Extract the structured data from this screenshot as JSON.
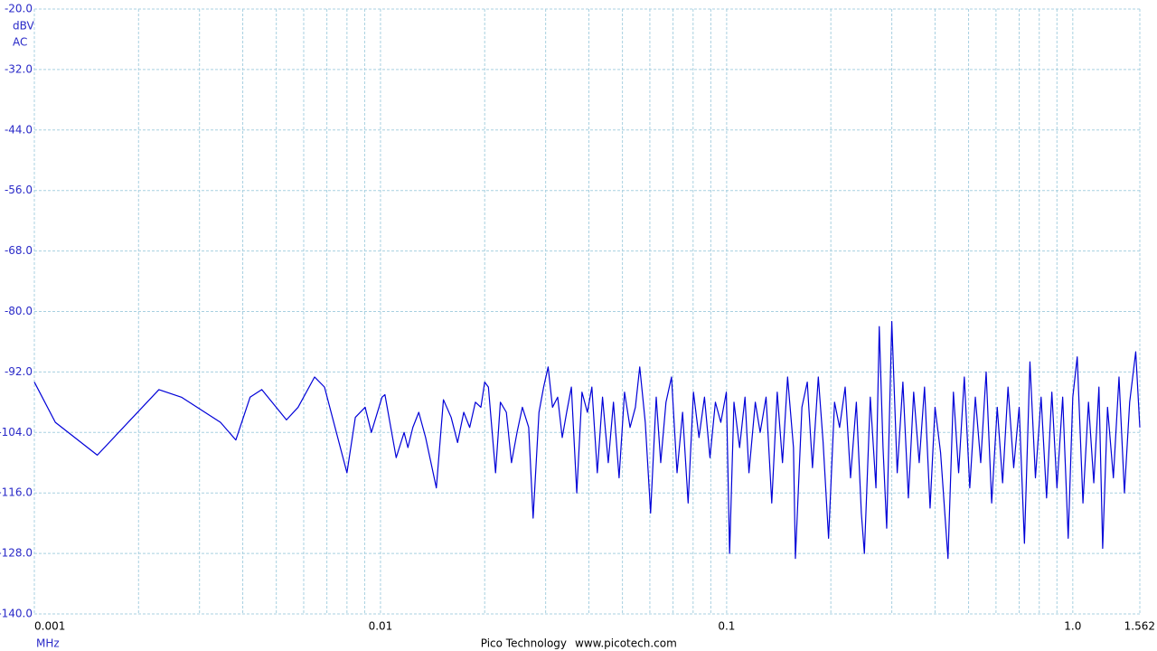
{
  "chart_data": {
    "type": "line",
    "log_x": true,
    "grid": true,
    "y_unit": "dBV",
    "coupling": "AC",
    "x_unit": "MHz",
    "footer": [
      "Pico Technology",
      "www.picotech.com"
    ],
    "xlim": [
      0.001,
      1.562
    ],
    "xticks": [
      0.001,
      0.01,
      0.1,
      {
        "value": 1,
        "label": "1.0"
      },
      1.562
    ],
    "x_minor_ticks": [
      0.002,
      0.003,
      0.004,
      0.005,
      0.006,
      0.007,
      0.008,
      0.009,
      0.02,
      0.03,
      0.04,
      0.05,
      0.06,
      0.07,
      0.08,
      0.09,
      0.2,
      0.3,
      0.4,
      0.5,
      0.6,
      0.7,
      0.8,
      0.9
    ],
    "ylim": [
      -140,
      -20
    ],
    "yticks": [
      {
        "value": -20,
        "label": "-20.0"
      },
      {
        "value": -32,
        "label": "-32.0"
      },
      {
        "value": -44,
        "label": "-44.0"
      },
      {
        "value": -56,
        "label": "-56.0"
      },
      {
        "value": -68,
        "label": "-68.0"
      },
      {
        "value": -80,
        "label": "-80.0"
      },
      {
        "value": -92,
        "label": "-92.0"
      },
      {
        "value": -104,
        "label": "-104.0"
      },
      {
        "value": -116,
        "label": "-116.0"
      },
      {
        "value": -128,
        "label": "-128.0"
      },
      {
        "value": -140,
        "label": "-140.0"
      }
    ],
    "x": [
      0.001,
      0.00115,
      0.00152,
      0.00229,
      0.00266,
      0.00345,
      0.00382,
      0.0042,
      0.00454,
      0.00535,
      0.00578,
      0.00645,
      0.00689,
      0.008,
      0.00846,
      0.00903,
      0.00941,
      0.0101,
      0.0103,
      0.0111,
      0.0117,
      0.012,
      0.0124,
      0.0129,
      0.0135,
      0.0145,
      0.0152,
      0.016,
      0.0167,
      0.0174,
      0.0181,
      0.0188,
      0.0195,
      0.02,
      0.0205,
      0.0215,
      0.0222,
      0.0231,
      0.0239,
      0.0248,
      0.0257,
      0.0268,
      0.0276,
      0.0287,
      0.0296,
      0.0305,
      0.0314,
      0.0325,
      0.0335,
      0.0345,
      0.0356,
      0.0369,
      0.0382,
      0.0396,
      0.0408,
      0.0423,
      0.0438,
      0.0455,
      0.0471,
      0.0489,
      0.0507,
      0.0526,
      0.0545,
      0.0561,
      0.0582,
      0.0603,
      0.0626,
      0.0645,
      0.0668,
      0.0693,
      0.0719,
      0.0746,
      0.0774,
      0.0802,
      0.0832,
      0.0863,
      0.0895,
      0.0928,
      0.0962,
      0.0998,
      0.102,
      0.105,
      0.109,
      0.113,
      0.116,
      0.121,
      0.125,
      0.13,
      0.135,
      0.14,
      0.145,
      0.15,
      0.156,
      0.158,
      0.165,
      0.171,
      0.177,
      0.184,
      0.19,
      0.197,
      0.205,
      0.212,
      0.22,
      0.228,
      0.237,
      0.245,
      0.25,
      0.26,
      0.27,
      0.276,
      0.283,
      0.29,
      0.3,
      0.311,
      0.323,
      0.335,
      0.347,
      0.36,
      0.373,
      0.387,
      0.4,
      0.415,
      0.436,
      0.452,
      0.468,
      0.486,
      0.504,
      0.523,
      0.542,
      0.562,
      0.583,
      0.605,
      0.627,
      0.65,
      0.675,
      0.7,
      0.725,
      0.752,
      0.78,
      0.81,
      0.84,
      0.87,
      0.9,
      0.935,
      0.97,
      1.0,
      1.03,
      1.07,
      1.11,
      1.15,
      1.19,
      1.22,
      1.26,
      1.31,
      1.36,
      1.41,
      1.46,
      1.52,
      1.562
    ],
    "series": [
      {
        "color": "#0000d8",
        "values": [
          -94,
          -102,
          -108.5,
          -95.5,
          -97,
          -102,
          -105.5,
          -97,
          -95.5,
          -101.5,
          -99,
          -93,
          -95,
          -112,
          -101,
          -99,
          -104,
          -97,
          -96.5,
          -109,
          -104,
          -107,
          -103,
          -100,
          -105,
          -115,
          -97.5,
          -101,
          -106,
          -100,
          -103,
          -98,
          -99,
          -94,
          -95,
          -112,
          -98,
          -100,
          -110,
          -104,
          -99,
          -103,
          -121,
          -100,
          -95,
          -91,
          -99,
          -97,
          -105,
          -100,
          -95,
          -116,
          -96,
          -100,
          -95,
          -112,
          -97,
          -110,
          -98,
          -113,
          -96,
          -103,
          -99,
          -91,
          -102,
          -120,
          -97,
          -110,
          -98,
          -93,
          -112,
          -100,
          -118,
          -96,
          -105,
          -97,
          -109,
          -98,
          -102,
          -96,
          -128,
          -98,
          -107,
          -97,
          -112,
          -98,
          -104,
          -97,
          -118,
          -96,
          -110,
          -93,
          -107,
          -129,
          -99,
          -94,
          -111,
          -93,
          -106,
          -125,
          -98,
          -103,
          -95,
          -113,
          -98,
          -120,
          -128,
          -97,
          -115,
          -83,
          -107,
          -123,
          -82,
          -112,
          -94,
          -117,
          -96,
          -110,
          -95,
          -119,
          -99,
          -108,
          -129,
          -96,
          -112,
          -93,
          -115,
          -97,
          -110,
          -92,
          -118,
          -99,
          -114,
          -95,
          -111,
          -99,
          -126,
          -90,
          -113,
          -97,
          -117,
          -96,
          -115,
          -97,
          -125,
          -97,
          -89,
          -118,
          -98,
          -114,
          -95,
          -127,
          -99,
          -113,
          -93,
          -116,
          -98,
          -88,
          -103
        ]
      }
    ]
  }
}
